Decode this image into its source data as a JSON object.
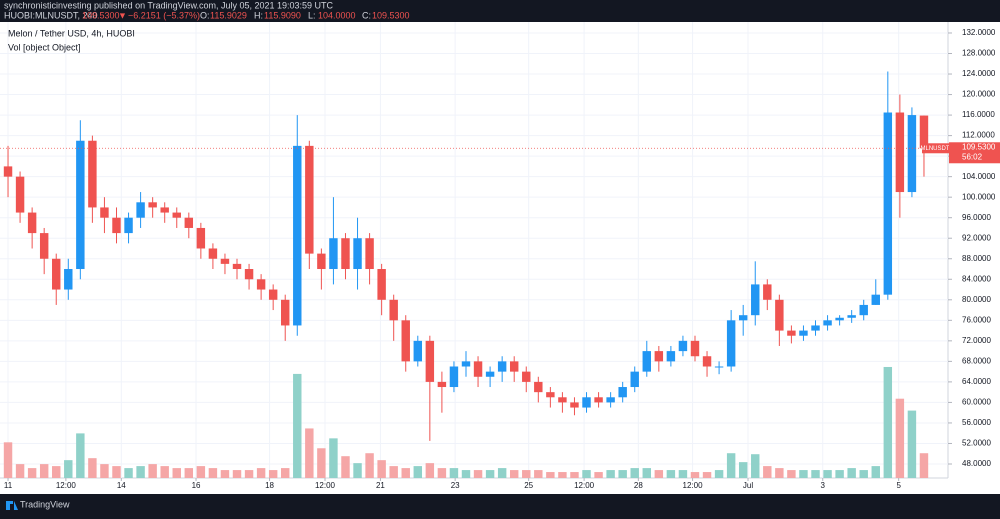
{
  "header": {
    "published": "synchronisticinvesting published on TradingView.com, July 05, 2021 19:03:59 UTC",
    "symbol": "HUOBI:MLNUSDT, 240",
    "last": "109.5300",
    "direction": "▼",
    "change": "−6.2151 (−5.37%)",
    "ohlc": [
      {
        "label": "O:",
        "value": "115.9029"
      },
      {
        "label": "H:",
        "value": "115.9090"
      },
      {
        "label": "L:",
        "value": "104.0000"
      },
      {
        "label": "C:",
        "value": "109.5300"
      }
    ]
  },
  "footer": {
    "brand": "TradingView"
  },
  "chart_data": {
    "type": "candlestick",
    "title": "Melon / Tether USD, 4h, HUOBI",
    "volume_title": "Vol [object Object]",
    "open": [
      106,
      104,
      97,
      93,
      88,
      82,
      86,
      111,
      98,
      96,
      93,
      96,
      99,
      98,
      97,
      96,
      94,
      90,
      88,
      87,
      86,
      84,
      82,
      80,
      75,
      110,
      89,
      86,
      92,
      86,
      92,
      86,
      80,
      76,
      68,
      72,
      64,
      63,
      67,
      68,
      65,
      66,
      68,
      66,
      64,
      62,
      61,
      60,
      59,
      61,
      60,
      61,
      63,
      66,
      70,
      68,
      70,
      72,
      69,
      67,
      67,
      76,
      77,
      83,
      80,
      74,
      73,
      74,
      75,
      76,
      76.5,
      77,
      79,
      81,
      116.5,
      101,
      115.9029
    ],
    "high": [
      110,
      105,
      98,
      94,
      89,
      88,
      115,
      112,
      100,
      98,
      97,
      101,
      100,
      99,
      98,
      97,
      95,
      91,
      89,
      88,
      87,
      85,
      83,
      81,
      116,
      111,
      90,
      100,
      93,
      96,
      93,
      87,
      81,
      77,
      73,
      73,
      66,
      68,
      70,
      69,
      67,
      69,
      69,
      67,
      65,
      63,
      62,
      61,
      62,
      62,
      62,
      64,
      67,
      72,
      71,
      71,
      73,
      73,
      70,
      68,
      78,
      79,
      87.5,
      84,
      81,
      75,
      75,
      76,
      77,
      77,
      78,
      80,
      84,
      124.5,
      120,
      117.5,
      115.909
    ],
    "low": [
      100,
      95,
      90,
      85,
      79,
      80,
      84,
      95,
      93,
      91,
      91,
      94,
      96,
      95,
      94,
      92,
      88,
      86,
      85,
      84,
      82,
      80,
      78,
      72,
      73,
      86,
      82,
      83,
      84,
      82,
      83,
      77,
      72,
      66,
      67,
      52.5,
      58,
      62,
      65,
      63,
      63,
      64,
      64,
      62,
      60,
      59,
      58,
      57.5,
      58,
      59,
      59,
      60,
      62,
      65,
      66,
      67,
      69,
      68,
      65,
      65.5,
      66,
      73,
      75,
      78,
      71,
      71.5,
      72,
      73,
      74,
      75,
      75.5,
      76,
      79,
      80,
      96,
      100,
      104
    ],
    "close": [
      104,
      97,
      93,
      88,
      82,
      86,
      111,
      98,
      96,
      93,
      96,
      99,
      98,
      97,
      96,
      94,
      90,
      88,
      87,
      86,
      84,
      82,
      80,
      75,
      110,
      89,
      86,
      92,
      86,
      92,
      86,
      80,
      76,
      68,
      72,
      64,
      63,
      67,
      68,
      65,
      66,
      68,
      66,
      64,
      62,
      61,
      60,
      59,
      61,
      60,
      61,
      63,
      66,
      70,
      68,
      70,
      72,
      69,
      67,
      67,
      76,
      77,
      83,
      80,
      74,
      73,
      74,
      75,
      76,
      76.5,
      77,
      79,
      81,
      116.5,
      101,
      116,
      109.53
    ],
    "volume": [
      36,
      14,
      10,
      14,
      12,
      18,
      45,
      20,
      14,
      12,
      10,
      12,
      14,
      12,
      10,
      10,
      12,
      10,
      8,
      8,
      8,
      10,
      8,
      10,
      105,
      50,
      30,
      40,
      22,
      15,
      25,
      18,
      12,
      10,
      12,
      15,
      10,
      10,
      8,
      8,
      8,
      10,
      8,
      8,
      8,
      6,
      6,
      6,
      8,
      6,
      8,
      8,
      10,
      10,
      8,
      8,
      8,
      6,
      6,
      8,
      25,
      16,
      24,
      12,
      10,
      8,
      8,
      8,
      8,
      8,
      10,
      8,
      12,
      112,
      80,
      68,
      25
    ],
    "up_color": "#2196f3",
    "down_color": "#ef5350",
    "volume_up_color": "#8fd1c9",
    "volume_down_color": "#f5a6a6",
    "ylim": [
      45.27,
      134.14
    ],
    "vol_ylim": [
      0,
      460
    ],
    "yticks": [
      {
        "value": 48,
        "label": "48.0000"
      },
      {
        "value": 52,
        "label": "52.0000"
      },
      {
        "value": 56,
        "label": "56.0000"
      },
      {
        "value": 60,
        "label": "60.0000"
      },
      {
        "value": 64,
        "label": "64.0000"
      },
      {
        "value": 68,
        "label": "68.0000"
      },
      {
        "value": 72,
        "label": "72.0000"
      },
      {
        "value": 76,
        "label": "76.0000"
      },
      {
        "value": 80,
        "label": "80.0000"
      },
      {
        "value": 84,
        "label": "84.0000"
      },
      {
        "value": 88,
        "label": "88.0000"
      },
      {
        "value": 92,
        "label": "92.0000"
      },
      {
        "value": 96,
        "label": "96.0000"
      },
      {
        "value": 100,
        "label": "100.0000"
      },
      {
        "value": 104,
        "label": "104.0000"
      },
      {
        "value": 108,
        "label": "108.0000"
      },
      {
        "value": 112,
        "label": "112.0000"
      },
      {
        "value": 116,
        "label": "116.0000"
      },
      {
        "value": 120,
        "label": "120.0000"
      },
      {
        "value": 124,
        "label": "124.0000"
      },
      {
        "value": 128,
        "label": "128.0000"
      },
      {
        "value": 132,
        "label": "132.0000"
      }
    ],
    "xticks": [
      {
        "value": 0,
        "label": "11"
      },
      {
        "value": 4.8,
        "label": "12:00"
      },
      {
        "value": 9.4,
        "label": "14"
      },
      {
        "value": 15.6,
        "label": "16"
      },
      {
        "value": 21.7,
        "label": "18"
      },
      {
        "value": 26.3,
        "label": "12:00"
      },
      {
        "value": 30.9,
        "label": "21"
      },
      {
        "value": 37.1,
        "label": "23"
      },
      {
        "value": 43.2,
        "label": "25"
      },
      {
        "value": 47.8,
        "label": "12:00"
      },
      {
        "value": 52.3,
        "label": "28"
      },
      {
        "value": 56.8,
        "label": "12:00"
      },
      {
        "value": 61.4,
        "label": "Jul"
      },
      {
        "value": 67.6,
        "label": "3"
      },
      {
        "value": 73.9,
        "label": "5"
      }
    ],
    "price_line": {
      "symbol": "MLNUSDT",
      "value": 109.53,
      "label": "109.5300",
      "countdown": "56:02"
    },
    "grid": true
  }
}
